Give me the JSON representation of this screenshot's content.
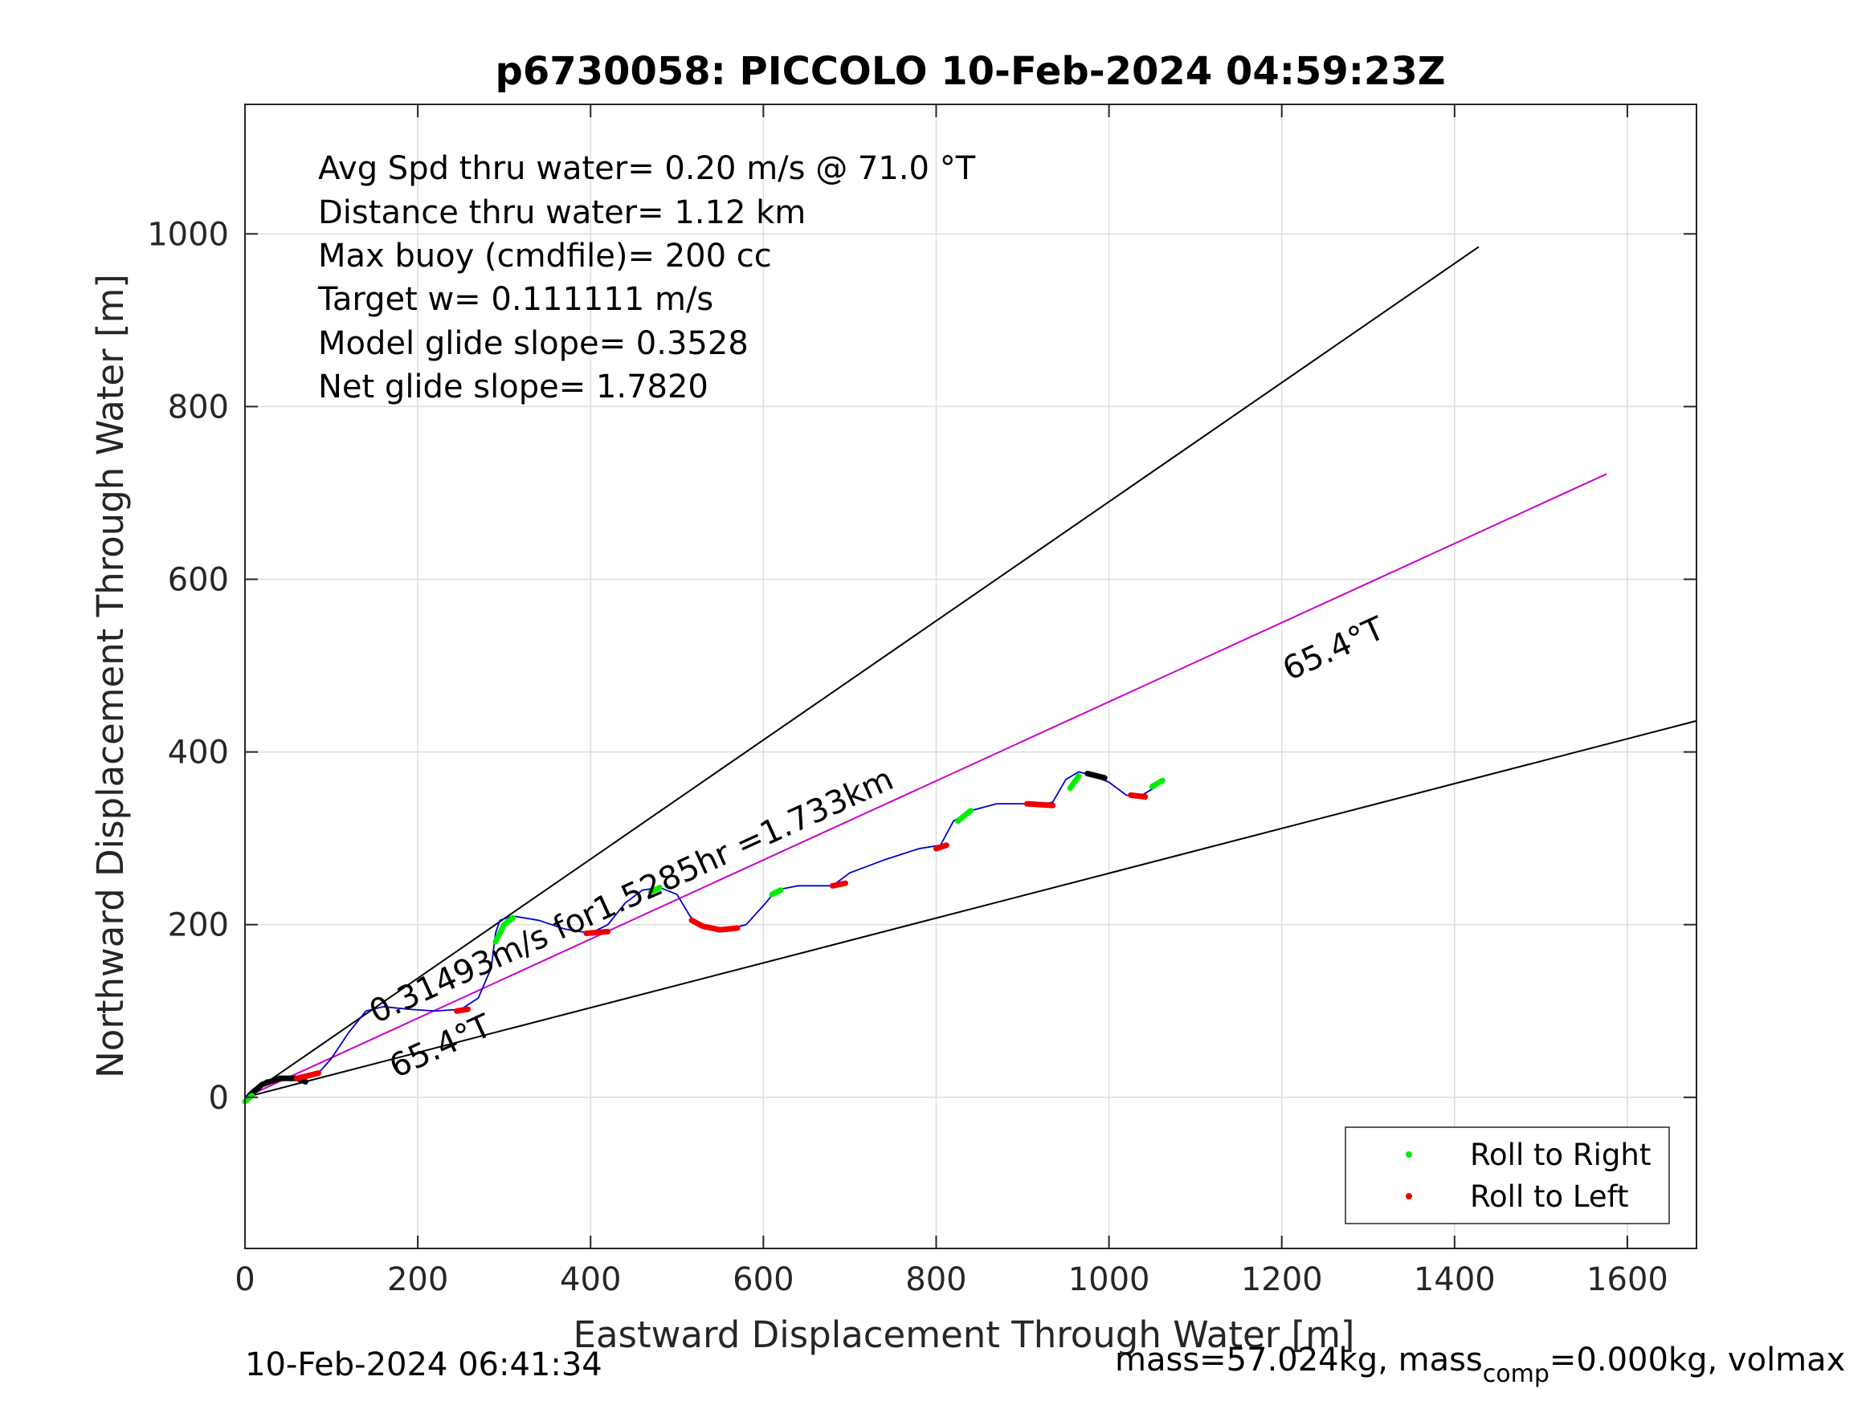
{
  "chart_data": {
    "type": "line",
    "title": "p6730058: PICCOLO 10-Feb-2024 04:59:23Z",
    "xlabel": "Eastward Displacement Through Water [m]",
    "ylabel": "Northward Displacement Through Water [m]",
    "xlim": [
      0,
      1680
    ],
    "ylim": [
      -175,
      1150
    ],
    "xticks": [
      "0",
      "200",
      "400",
      "600",
      "800",
      "1000",
      "1200",
      "1400",
      "1600"
    ],
    "yticks": [
      "0",
      "200",
      "400",
      "600",
      "800",
      "1000"
    ],
    "grid": true,
    "legend_position": "bottom-right",
    "legend": [
      {
        "label": "Roll to Right",
        "color": "#00ee00"
      },
      {
        "label": "Roll to Left",
        "color": "#ee0000"
      }
    ],
    "info_lines": [
      "Avg Spd thru water=  0.20 m/s @  71.0 °T",
      "Distance thru water=  1.12 km",
      "Max buoy (cmdfile)= 200 cc",
      "Target w= 0.111111 m/s",
      "Model glide slope= 0.3528",
      "Net glide slope= 1.7820"
    ],
    "annotations": {
      "current_text": "0.31493m/s for1.5285hr =1.733km",
      "heading_upper": "65.4°T",
      "heading_lower": "65.4°T"
    },
    "reference_lines": [
      {
        "name": "upper",
        "x": [
          0,
          1428
        ],
        "y": [
          0,
          985
        ],
        "color": "#000000"
      },
      {
        "name": "current",
        "x": [
          0,
          1576
        ],
        "y": [
          0,
          722
        ],
        "color": "#cc00cc"
      },
      {
        "name": "lower",
        "x": [
          0,
          1680
        ],
        "y": [
          0,
          436
        ],
        "color": "#000000"
      }
    ],
    "track": {
      "color": "#0000cc",
      "x": [
        0,
        10,
        25,
        45,
        65,
        85,
        100,
        120,
        140,
        160,
        190,
        220,
        250,
        270,
        285,
        290,
        295,
        310,
        340,
        370,
        400,
        420,
        440,
        460,
        480,
        500,
        515,
        525,
        540,
        560,
        580,
        600,
        615,
        640,
        680,
        700,
        740,
        780,
        805,
        820,
        840,
        870,
        900,
        920,
        935,
        950,
        965,
        980,
        1000,
        1020,
        1035,
        1045,
        1055,
        1062
      ],
      "y": [
        0,
        10,
        20,
        22,
        22,
        28,
        45,
        75,
        100,
        105,
        102,
        100,
        102,
        115,
        150,
        190,
        205,
        210,
        205,
        195,
        190,
        200,
        225,
        240,
        243,
        235,
        210,
        200,
        195,
        195,
        200,
        222,
        240,
        245,
        245,
        260,
        275,
        288,
        292,
        320,
        332,
        340,
        340,
        338,
        342,
        368,
        377,
        373,
        365,
        350,
        348,
        354,
        360,
        367
      ]
    },
    "roll_right_segments": [
      {
        "x": [
          0,
          8
        ],
        "y": [
          -5,
          2
        ]
      },
      {
        "x": [
          290,
          300,
          310
        ],
        "y": [
          180,
          200,
          208
        ]
      },
      {
        "x": [
          470,
          480
        ],
        "y": [
          238,
          243
        ]
      },
      {
        "x": [
          610,
          620
        ],
        "y": [
          235,
          240
        ]
      },
      {
        "x": [
          825,
          840
        ],
        "y": [
          320,
          332
        ]
      },
      {
        "x": [
          955,
          965
        ],
        "y": [
          358,
          372
        ]
      },
      {
        "x": [
          1050,
          1062
        ],
        "y": [
          360,
          367
        ]
      }
    ],
    "roll_left_segments": [
      {
        "x": [
          60,
          85
        ],
        "y": [
          22,
          28
        ]
      },
      {
        "x": [
          245,
          258
        ],
        "y": [
          100,
          102
        ]
      },
      {
        "x": [
          395,
          420
        ],
        "y": [
          190,
          192
        ]
      },
      {
        "x": [
          517,
          530,
          550,
          570
        ],
        "y": [
          205,
          198,
          194,
          196
        ]
      },
      {
        "x": [
          680,
          695
        ],
        "y": [
          245,
          248
        ]
      },
      {
        "x": [
          800,
          812
        ],
        "y": [
          288,
          292
        ]
      },
      {
        "x": [
          905,
          935
        ],
        "y": [
          340,
          338
        ]
      },
      {
        "x": [
          1025,
          1042
        ],
        "y": [
          350,
          348
        ]
      }
    ],
    "black_segments": [
      {
        "x": [
          5,
          20,
          40,
          60,
          70
        ],
        "y": [
          2,
          15,
          22,
          22,
          18
        ]
      },
      {
        "x": [
          975,
          995
        ],
        "y": [
          375,
          370
        ]
      }
    ]
  },
  "footer": {
    "timestamp": "10-Feb-2024 06:41:34",
    "mass_text": "mass=57.024kg, mass",
    "mass_sub": "comp",
    "mass_rest": "=0.000kg, volmax"
  }
}
